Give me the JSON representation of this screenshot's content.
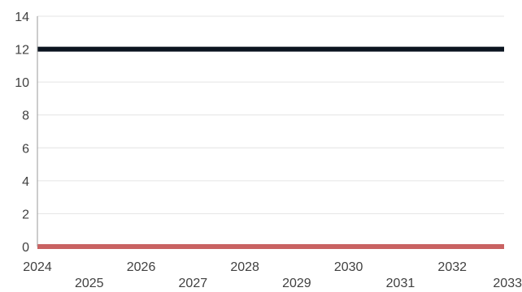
{
  "chart_data": {
    "type": "line",
    "title": "",
    "xlabel": "",
    "ylabel": "",
    "x": [
      2024,
      2025,
      2026,
      2027,
      2028,
      2029,
      2030,
      2031,
      2032,
      2033
    ],
    "x_tick_labels": [
      "2024",
      "2025",
      "2026",
      "2027",
      "2028",
      "2029",
      "2030",
      "2031",
      "2032",
      "2033"
    ],
    "xlim": [
      2024,
      2033
    ],
    "ylim": [
      0,
      14
    ],
    "y_ticks": [
      0,
      2,
      4,
      6,
      8,
      10,
      12,
      14
    ],
    "y_tick_labels": [
      "0",
      "2",
      "4",
      "6",
      "8",
      "10",
      "12",
      "14"
    ],
    "grid": true,
    "legend": "none",
    "series": [
      {
        "values": [
          12,
          12,
          12,
          12,
          12,
          12,
          12,
          12,
          12,
          12
        ],
        "color": "#0b1420"
      },
      {
        "values": [
          0,
          0,
          0,
          0,
          0,
          0,
          0,
          0,
          0,
          0
        ],
        "color": "#c96262"
      }
    ]
  }
}
